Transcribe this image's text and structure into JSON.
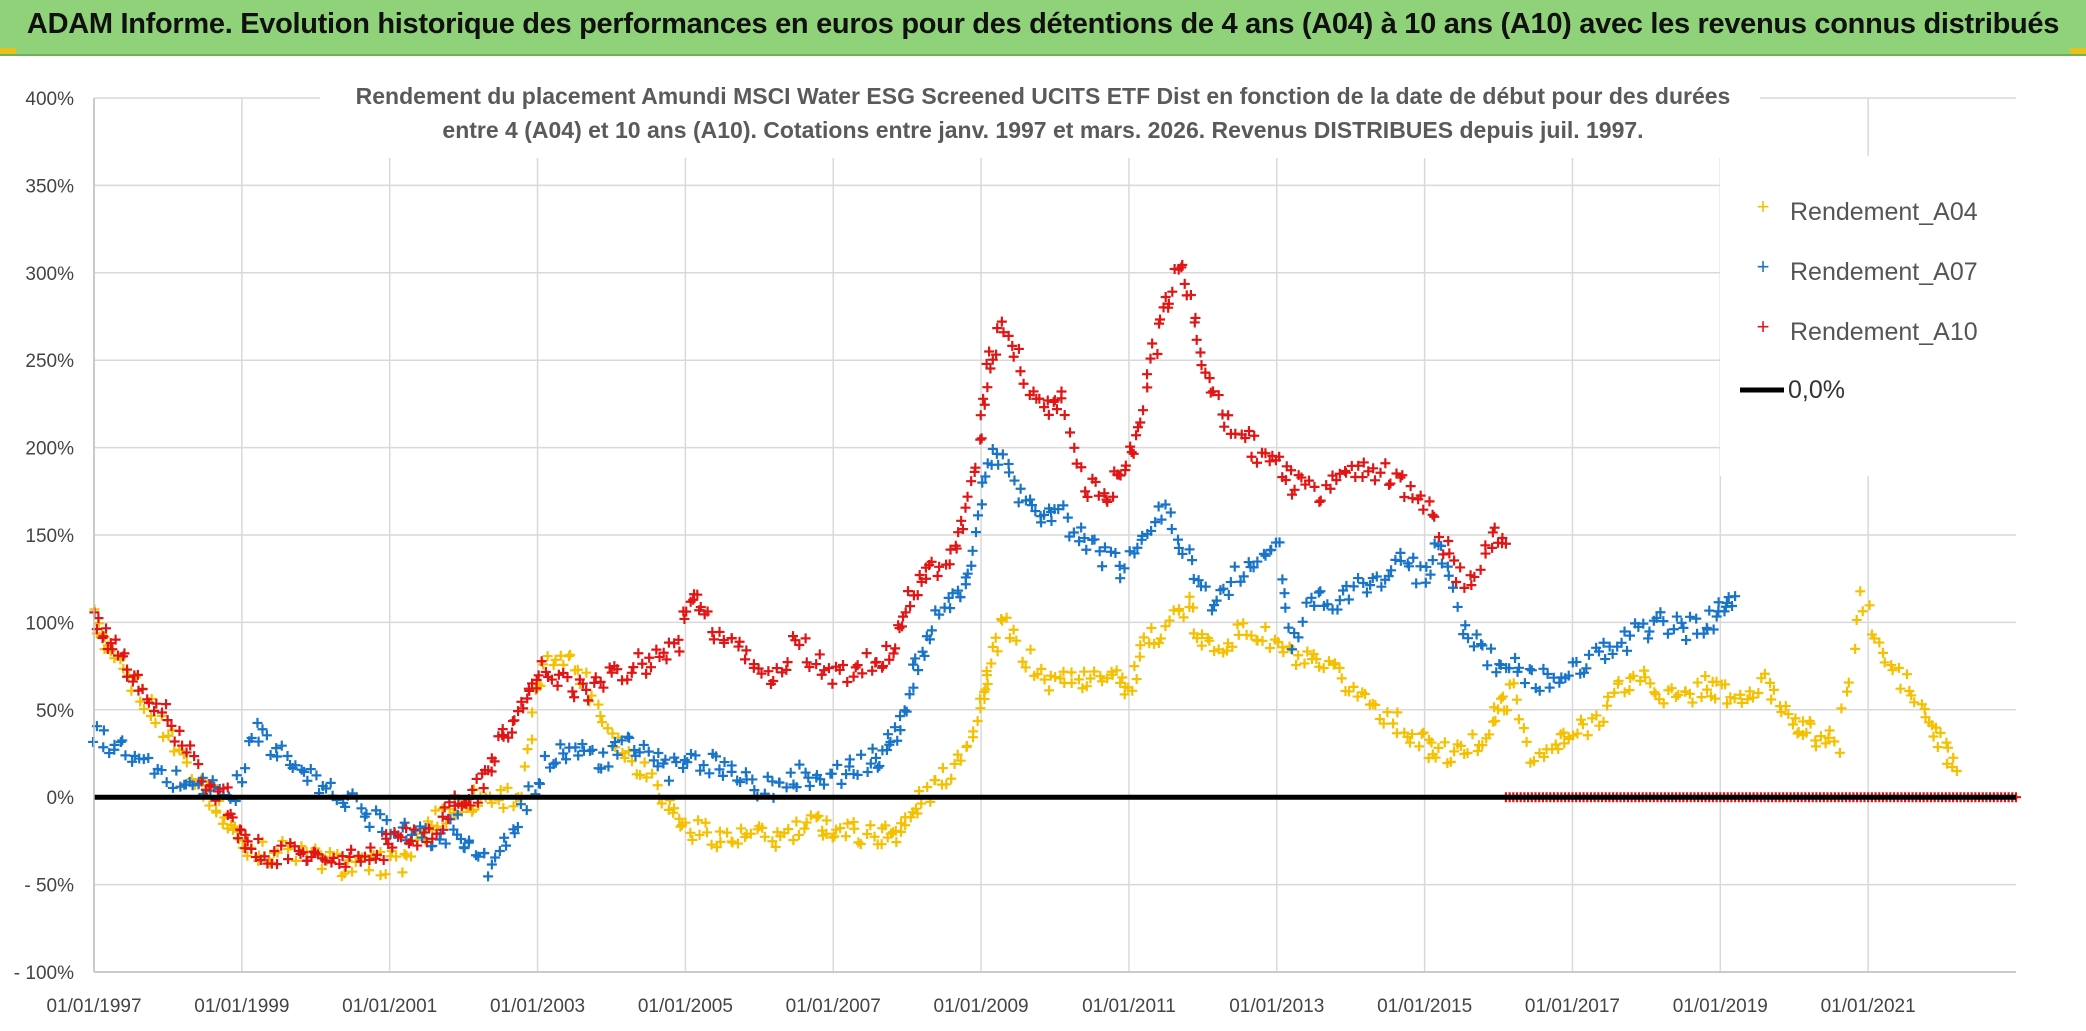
{
  "header": {
    "title": "ADAM Informe. Evolution historique des performances en euros pour des détentions de 4 ans (A04) à 10 ans (A10) avec les revenus connus distribués"
  },
  "chart_data": {
    "type": "scatter",
    "title_line1": "Rendement du placement Amundi MSCI Water ESG Screened UCITS ETF Dist en fonction de la date de début pour des durées",
    "title_line2": "entre 4 (A04) et 10 ans (A10). Cotations entre janv. 1997 et mars. 2026. Revenus DISTRIBUES depuis juil. 1997.",
    "x_range": [
      1997.0,
      2023.0
    ],
    "ylim": [
      -100,
      400
    ],
    "y_ticks": [
      {
        "value": 400,
        "label": "400%"
      },
      {
        "value": 350,
        "label": "350%"
      },
      {
        "value": 300,
        "label": "300%"
      },
      {
        "value": 250,
        "label": "250%"
      },
      {
        "value": 200,
        "label": "200%"
      },
      {
        "value": 150,
        "label": "150%"
      },
      {
        "value": 100,
        "label": "100%"
      },
      {
        "value": 50,
        "label": "50%"
      },
      {
        "value": 0,
        "label": "0%"
      },
      {
        "value": -50,
        "label": "- 50%"
      },
      {
        "value": -100,
        "label": "- 100%"
      }
    ],
    "x_ticks": [
      {
        "value": 1997,
        "label": "01/01/1997"
      },
      {
        "value": 1999,
        "label": "01/01/1999"
      },
      {
        "value": 2001,
        "label": "01/01/2001"
      },
      {
        "value": 2003,
        "label": "01/01/2003"
      },
      {
        "value": 2005,
        "label": "01/01/2005"
      },
      {
        "value": 2007,
        "label": "01/01/2007"
      },
      {
        "value": 2009,
        "label": "01/01/2009"
      },
      {
        "value": 2011,
        "label": "01/01/2011"
      },
      {
        "value": 2013,
        "label": "01/01/2013"
      },
      {
        "value": 2015,
        "label": "01/01/2015"
      },
      {
        "value": 2017,
        "label": "01/01/2017"
      },
      {
        "value": 2019,
        "label": "01/01/2019"
      },
      {
        "value": 2021,
        "label": "01/01/2021"
      }
    ],
    "grid": true,
    "legend_position": "top-right",
    "series": [
      {
        "name": "Rendement_A04",
        "color": "#f5c000",
        "x": [
          1997.0,
          1997.2,
          1997.5,
          1997.8,
          1998.1,
          1998.4,
          1998.6,
          1998.8,
          1999.0,
          1999.3,
          1999.6,
          2000.0,
          2000.3,
          2000.6,
          2000.9,
          2001.2,
          2001.5,
          2001.7,
          2002.0,
          2002.2,
          2002.5,
          2002.8,
          2003.0,
          2003.3,
          2003.6,
          2003.9,
          2004.2,
          2004.5,
          2004.8,
          2005.0,
          2005.3,
          2005.6,
          2005.9,
          2006.2,
          2006.5,
          2006.8,
          2007.0,
          2007.3,
          2007.6,
          2007.8,
          2008.0,
          2008.2,
          2008.5,
          2008.8,
          2009.0,
          2009.1,
          2009.3,
          2009.6,
          2009.9,
          2010.2,
          2010.5,
          2010.8,
          2011.0,
          2011.2,
          2011.5,
          2011.8,
          2012.0,
          2012.3,
          2012.6,
          2012.9,
          2013.2,
          2013.5,
          2013.8,
          2014.1,
          2014.4,
          2014.7,
          2015.0,
          2015.2,
          2015.5,
          2015.8,
          2016.0,
          2016.2,
          2016.5,
          2016.8,
          2017.0,
          2017.3,
          2017.6,
          2017.9,
          2018.2,
          2018.5,
          2018.8,
          2019.0,
          2019.3,
          2019.6,
          2019.9,
          2020.1,
          2020.3,
          2020.6,
          2020.9,
          2021.2,
          2021.5,
          2021.8,
          2022.0,
          2022.2
        ],
        "y": [
          103,
          80,
          65,
          50,
          30,
          10,
          0,
          -15,
          -25,
          -32,
          -30,
          -35,
          -38,
          -40,
          -38,
          -36,
          -20,
          -10,
          -5,
          0,
          0,
          2,
          65,
          85,
          70,
          45,
          25,
          15,
          -5,
          -18,
          -20,
          -25,
          -22,
          -24,
          -20,
          -15,
          -18,
          -20,
          -22,
          -20,
          -15,
          0,
          10,
          30,
          55,
          70,
          100,
          80,
          65,
          70,
          65,
          75,
          60,
          85,
          100,
          110,
          85,
          90,
          95,
          90,
          80,
          75,
          70,
          60,
          50,
          40,
          30,
          25,
          25,
          35,
          50,
          60,
          20,
          30,
          35,
          45,
          60,
          70,
          60,
          55,
          65,
          60,
          55,
          65,
          50,
          40,
          35,
          30,
          115,
          80,
          65,
          45,
          30,
          15
        ],
        "y_note": "continues to 35 at 2022.3"
      },
      {
        "name": "Rendement_A07",
        "color": "#1874c8",
        "x": [
          1997.0,
          1997.3,
          1997.6,
          1998.0,
          1998.3,
          1998.6,
          1998.9,
          1999.2,
          1999.5,
          1999.8,
          2000.1,
          2000.4,
          2000.7,
          2001.0,
          2001.3,
          2001.6,
          2001.9,
          2002.1,
          2002.4,
          2002.7,
          2003.0,
          2003.3,
          2003.6,
          2003.9,
          2004.2,
          2004.5,
          2004.8,
          2005.1,
          2005.4,
          2005.7,
          2006.0,
          2006.3,
          2006.6,
          2006.9,
          2007.2,
          2007.5,
          2007.7,
          2007.9,
          2008.1,
          2008.3,
          2008.6,
          2008.8,
          2009.0,
          2009.2,
          2009.5,
          2009.8,
          2010.0,
          2010.3,
          2010.6,
          2010.9,
          2011.2,
          2011.5,
          2011.8,
          2012.1,
          2012.4,
          2012.7,
          2013.0,
          2013.2,
          2013.5,
          2013.8,
          2014.1,
          2014.4,
          2014.7,
          2015.0,
          2015.2,
          2015.5,
          2015.8,
          2016.1,
          2016.4,
          2016.7,
          2017.0,
          2017.3,
          2017.6,
          2017.9,
          2018.2,
          2018.5,
          2018.8,
          2019.0,
          2019.2
        ],
        "y": [
          35,
          30,
          20,
          10,
          10,
          5,
          0,
          40,
          25,
          15,
          5,
          0,
          -10,
          -15,
          -20,
          -25,
          -15,
          -30,
          -40,
          -20,
          10,
          30,
          25,
          20,
          30,
          25,
          15,
          20,
          20,
          15,
          5,
          5,
          15,
          10,
          15,
          20,
          25,
          40,
          70,
          95,
          110,
          120,
          170,
          200,
          175,
          160,
          165,
          150,
          140,
          130,
          150,
          165,
          140,
          110,
          125,
          130,
          150,
          90,
          115,
          110,
          120,
          125,
          135,
          125,
          145,
          100,
          80,
          75,
          70,
          65,
          75,
          80,
          85,
          95,
          100,
          95,
          100,
          105,
          115
        ]
      },
      {
        "name": "Rendement_A10",
        "color": "#e01515",
        "x": [
          1997.0,
          1997.2,
          1997.4,
          1997.6,
          1997.9,
          1998.2,
          1998.5,
          1998.8,
          1999.0,
          1999.2,
          1999.5,
          1999.8,
          2000.0,
          2000.3,
          2000.6,
          2000.9,
          2001.1,
          2001.4,
          2001.7,
          2001.9,
          2002.1,
          2002.3,
          2002.5,
          2002.7,
          2002.9,
          2003.1,
          2003.4,
          2003.7,
          2004.0,
          2004.3,
          2004.6,
          2004.9,
          2005.1,
          2005.3,
          2005.6,
          2005.9,
          2006.2,
          2006.5,
          2006.8,
          2007.1,
          2007.4,
          2007.7,
          2007.9,
          2008.1,
          2008.3,
          2008.6,
          2008.8,
          2009.0,
          2009.1,
          2009.3,
          2009.6,
          2009.9,
          2010.1,
          2010.4,
          2010.7,
          2010.9,
          2011.1,
          2011.3,
          2011.5,
          2011.7,
          2011.9,
          2012.1,
          2012.4,
          2012.7,
          2013.0,
          2013.2,
          2013.5,
          2013.8,
          2014.1,
          2014.4,
          2014.7,
          2015.0,
          2015.3,
          2015.6,
          2015.9,
          2016.1
        ],
        "y": [
          100,
          90,
          80,
          60,
          50,
          30,
          10,
          0,
          -25,
          -30,
          -35,
          -30,
          -35,
          -38,
          -35,
          -30,
          -20,
          -25,
          -15,
          -5,
          0,
          10,
          35,
          45,
          60,
          75,
          65,
          60,
          70,
          75,
          80,
          90,
          115,
          100,
          85,
          80,
          65,
          90,
          75,
          70,
          75,
          80,
          95,
          120,
          130,
          140,
          160,
          210,
          250,
          270,
          240,
          220,
          230,
          180,
          170,
          190,
          205,
          250,
          280,
          305,
          270,
          230,
          210,
          200,
          190,
          180,
          175,
          180,
          190,
          185,
          180,
          170,
          140,
          120,
          150,
          145
        ]
      }
    ],
    "reference_line": {
      "name": "0,0%",
      "value": 0,
      "color": "#000000"
    },
    "a10_zero_from": 2016.1,
    "a07_zero_note": "A07 and A04 have no value past their end date"
  }
}
